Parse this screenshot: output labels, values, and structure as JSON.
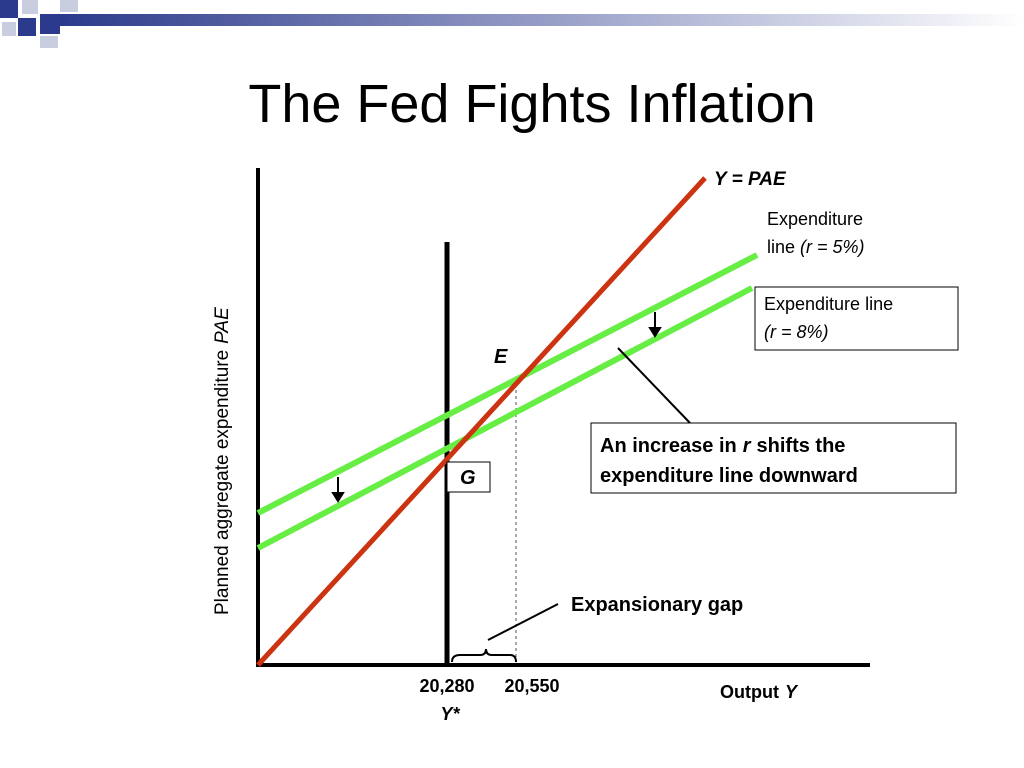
{
  "title": "The Fed Fights Inflation",
  "y_axis_label": {
    "text": "Planned aggregate expenditure",
    "italic": "PAE"
  },
  "x_axis_label": {
    "text": "Output",
    "italic": "Y"
  },
  "curve_labels": {
    "y_equals_pae": "Y = PAE",
    "expenditure_5": {
      "line1": "Expenditure",
      "line2": "line",
      "italic": "(r = 5%)"
    },
    "expenditure_8": {
      "line1": "Expenditure line",
      "italic": "(r = 8%)"
    }
  },
  "points": {
    "e": "E",
    "g": "G"
  },
  "annotation": {
    "text1": "An increase in",
    "italic": "r",
    "text2": "shifts the",
    "line2": "expenditure line downward"
  },
  "gap_label": "Expansionary gap",
  "x_ticks": [
    "20,280",
    "20,550"
  ],
  "potential_output": "Y*"
}
